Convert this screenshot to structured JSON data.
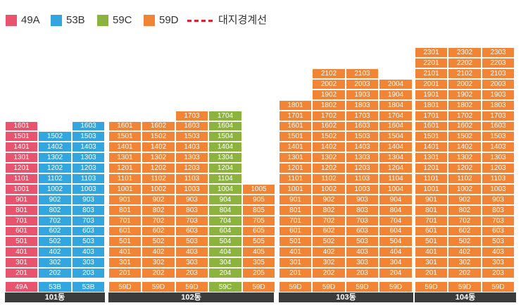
{
  "legend": [
    {
      "label": "49A",
      "color": "#e8546e"
    },
    {
      "label": "53B",
      "color": "#33a6df"
    },
    {
      "label": "59C",
      "color": "#8db33f"
    },
    {
      "label": "59D",
      "color": "#f28535"
    }
  ],
  "boundary_label": "대지경계선",
  "boundary_color": "#e0202a",
  "buildings": [
    {
      "name": "101동",
      "lines": [
        {
          "type": "49A",
          "units": [
            "201",
            "301",
            "401",
            "501",
            "601",
            "701",
            "801",
            "901",
            "1001",
            "1101",
            "1201",
            "1301",
            "1401",
            "1501",
            "1601"
          ]
        },
        {
          "type": "53B",
          "units": [
            "202",
            "302",
            "402",
            "502",
            "602",
            "702",
            "802",
            "902",
            "1002",
            "1102",
            "1202",
            "1302",
            "1402",
            "1502"
          ]
        },
        {
          "type": "53B",
          "units": [
            "203",
            "303",
            "403",
            "503",
            "603",
            "703",
            "803",
            "903",
            "1003",
            "1103",
            "1203",
            "1303",
            "1403",
            "1503",
            "1603"
          ]
        }
      ]
    },
    {
      "name": "102동",
      "lines": [
        {
          "type": "59D",
          "units": [
            "201",
            "301",
            "401",
            "501",
            "601",
            "701",
            "801",
            "901",
            "1001",
            "1101",
            "1201",
            "1301",
            "1401",
            "1501",
            "1601"
          ]
        },
        {
          "type": "59D",
          "units": [
            "202",
            "302",
            "402",
            "502",
            "602",
            "702",
            "802",
            "902",
            "1002",
            "1102",
            "1202",
            "1302",
            "1402",
            "1502",
            "1602"
          ]
        },
        {
          "type": "59D",
          "units": [
            "203",
            "303",
            "403",
            "503",
            "603",
            "703",
            "803",
            "903",
            "1003",
            "1103",
            "1203",
            "1303",
            "1403",
            "1503",
            "1603",
            "1703"
          ]
        },
        {
          "type": "59C",
          "units": [
            "204",
            "304",
            "404",
            "504",
            "604",
            "704",
            "804",
            "904",
            "1004",
            "1104",
            "1204",
            "1304",
            "1404",
            "1504",
            "1604",
            "1704"
          ]
        },
        {
          "type": "59D",
          "units": [
            "205",
            "305",
            "405",
            "505",
            "605",
            "705",
            "805",
            "905",
            "1005"
          ]
        }
      ]
    },
    {
      "name": "103동",
      "lines": [
        {
          "type": "59D",
          "units": [
            "201",
            "301",
            "401",
            "501",
            "601",
            "701",
            "801",
            "901",
            "1001",
            "1101",
            "1201",
            "1301",
            "1401",
            "1501",
            "1601",
            "1701",
            "1801"
          ]
        },
        {
          "type": "59D",
          "units": [
            "202",
            "302",
            "402",
            "502",
            "602",
            "702",
            "802",
            "902",
            "1002",
            "1102",
            "1202",
            "1302",
            "1402",
            "1502",
            "1602",
            "1702",
            "1802",
            "1902",
            "2002",
            "2102"
          ]
        },
        {
          "type": "59D",
          "units": [
            "203",
            "303",
            "403",
            "503",
            "603",
            "703",
            "803",
            "903",
            "1003",
            "1103",
            "1203",
            "1303",
            "1403",
            "1503",
            "1603",
            "1703",
            "1803",
            "1903",
            "2003",
            "2103"
          ]
        },
        {
          "type": "59D",
          "units": [
            "204",
            "304",
            "404",
            "504",
            "604",
            "704",
            "804",
            "904",
            "1004",
            "1104",
            "1204",
            "1304",
            "1404",
            "1504",
            "1604",
            "1704",
            "1804",
            "1904",
            "2004"
          ]
        }
      ]
    },
    {
      "name": "104동",
      "lines": [
        {
          "type": "59D",
          "units": [
            "201",
            "301",
            "401",
            "501",
            "601",
            "701",
            "801",
            "901",
            "1001",
            "1101",
            "1201",
            "1301",
            "1401",
            "1501",
            "1601",
            "1701",
            "1801",
            "1901",
            "2001",
            "2101",
            "2201",
            "2301"
          ]
        },
        {
          "type": "59D",
          "units": [
            "202",
            "302",
            "402",
            "502",
            "602",
            "702",
            "802",
            "902",
            "1002",
            "1102",
            "1202",
            "1302",
            "1402",
            "1502",
            "1602",
            "1702",
            "1802",
            "1902",
            "2002",
            "2102",
            "2202",
            "2302"
          ]
        },
        {
          "type": "59D",
          "units": [
            "203",
            "303",
            "403",
            "503",
            "603",
            "703",
            "803",
            "903",
            "1003",
            "1103",
            "1203",
            "1303",
            "1403",
            "1503",
            "1603",
            "1703",
            "1803",
            "1903",
            "2003",
            "2103",
            "2203",
            "2303"
          ]
        }
      ]
    }
  ]
}
